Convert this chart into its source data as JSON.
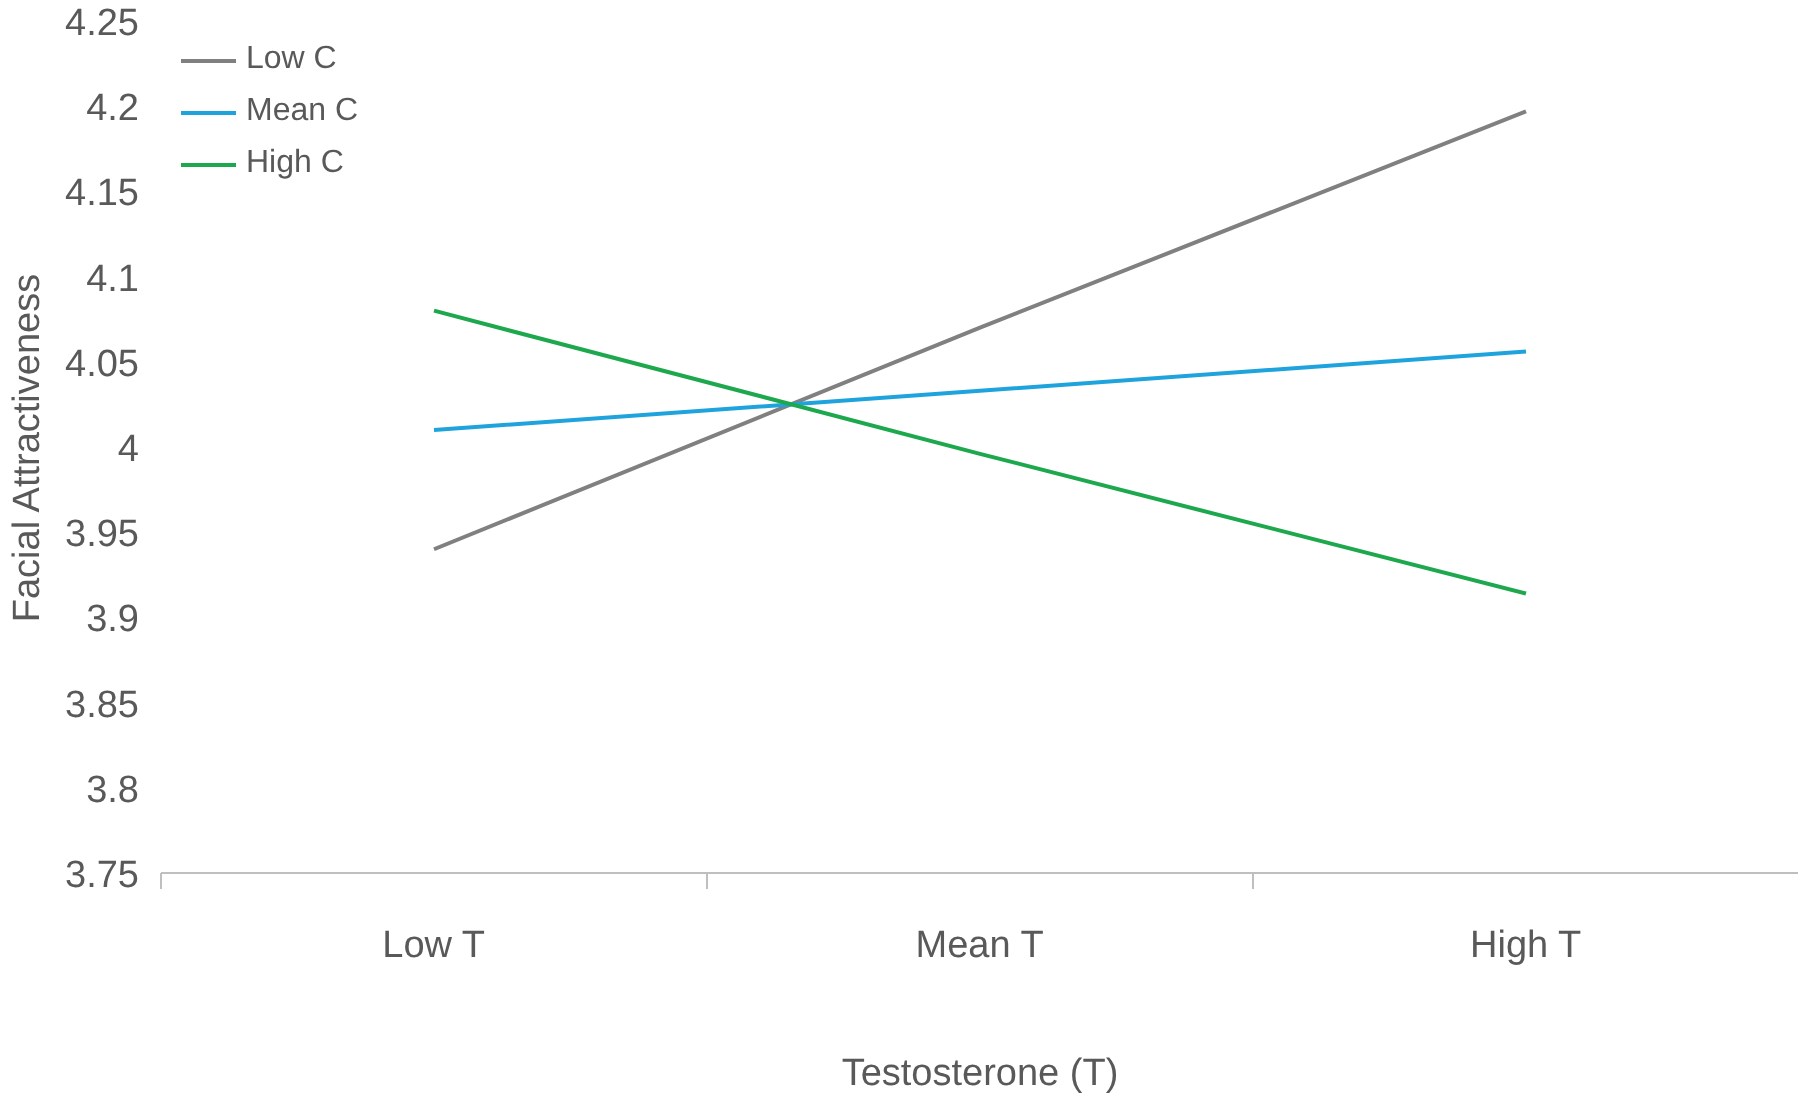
{
  "chart_data": {
    "type": "line",
    "xlabel": "Testosterone (T)",
    "ylabel": "Facial Attractiveness",
    "categories": [
      "Low T",
      "Mean T",
      "High T"
    ],
    "series": [
      {
        "name": "Low C",
        "color": "#808080",
        "values": [
          3.94,
          4.07,
          4.197
        ]
      },
      {
        "name": "Mean C",
        "color": "#1fa3dc",
        "values": [
          4.01,
          4.033,
          4.056
        ]
      },
      {
        "name": "High C",
        "color": "#1ea84e",
        "values": [
          4.08,
          3.996,
          3.914
        ]
      }
    ],
    "ylim": [
      3.75,
      4.25
    ],
    "yticks": [
      3.75,
      3.8,
      3.85,
      3.9,
      3.95,
      4,
      4.05,
      4.1,
      4.15,
      4.2,
      4.25
    ],
    "grid": false,
    "legend": "top left",
    "marker": "none",
    "line_style": "solid"
  }
}
